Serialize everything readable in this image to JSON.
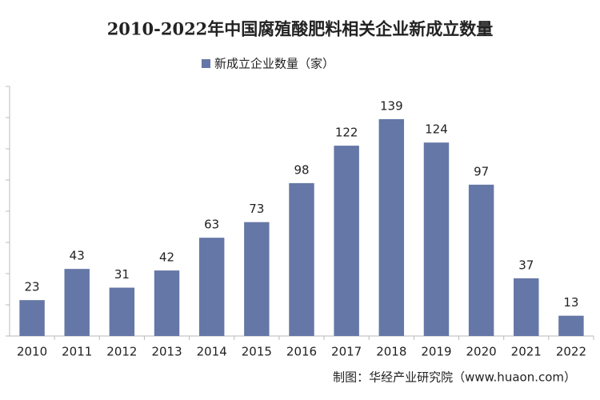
{
  "chart_data": {
    "type": "bar",
    "title": "2010-2022年中国腐殖酸肥料相关企业新成立数量",
    "categories": [
      "2010",
      "2011",
      "2012",
      "2013",
      "2014",
      "2015",
      "2016",
      "2017",
      "2018",
      "2019",
      "2020",
      "2021",
      "2022"
    ],
    "series": [
      {
        "name": "新成立企业数量（家）",
        "color": "#6577a6",
        "values": [
          23,
          43,
          31,
          42,
          63,
          73,
          98,
          122,
          139,
          124,
          97,
          37,
          13
        ]
      }
    ],
    "ylim": [
      0,
      160
    ],
    "yticks": [
      0,
      20,
      40,
      60,
      80,
      100,
      120,
      140,
      160
    ],
    "source": "制图：华经产业研究院（www.huaon.com）"
  }
}
